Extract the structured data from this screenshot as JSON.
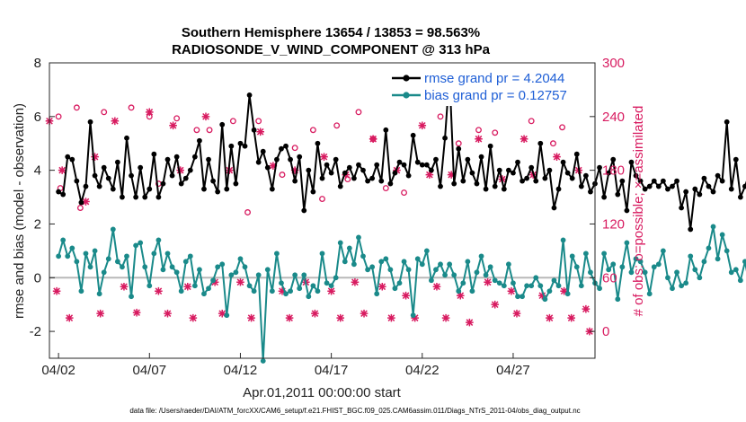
{
  "colors": {
    "rmse": "#000000",
    "bias": "#1a8a8a",
    "obs": "#d81b60",
    "zero_line": "#b8b8b8",
    "legend_text": "#1f5fd6"
  },
  "chart_data": {
    "type": "line",
    "title": "Southern Hemisphere 13654 / 13853 = 98.563%",
    "subtitle": "RADIOSONDE_V_WIND_COMPONENT @ 313 hPa",
    "xlabel": "Apr.01,2011 00:00:00 start",
    "ylabel": "rmse and bias (model - observation)",
    "y2label": "# of obs: o=possible; ×=assimilated",
    "x_tick_labels": [
      "04/02",
      "04/07",
      "04/12",
      "04/17",
      "04/22",
      "04/27"
    ],
    "x_tick_days": [
      1,
      6,
      11,
      16,
      21,
      26
    ],
    "xlim": [
      0.5,
      30.5
    ],
    "ylim": [
      -3,
      8
    ],
    "yticks": [
      -2,
      0,
      2,
      4,
      6,
      8
    ],
    "y2lim": [
      -30,
      300
    ],
    "y2ticks": [
      0,
      60,
      120,
      180,
      240,
      300
    ],
    "x_step_days": 0.25,
    "series": [
      {
        "name": "rmse grand pr = 4.2044",
        "axis": "left",
        "values": [
          3.2,
          3.1,
          4.5,
          4.4,
          3.6,
          2.8,
          3.4,
          5.8,
          3.8,
          3.4,
          4.1,
          3.7,
          3.3,
          4.3,
          3.0,
          5.2,
          3.8,
          3.0,
          4.1,
          3.0,
          3.3,
          4.6,
          3.0,
          3.5,
          4.4,
          3.8,
          4.5,
          3.5,
          3.7,
          4.0,
          4.5,
          5.1,
          3.3,
          4.4,
          3.6,
          3.2,
          5.7,
          3.3,
          4.9,
          3.5,
          5.0,
          4.9,
          6.8,
          5.5,
          4.3,
          4.7,
          4.1,
          3.3,
          4.4,
          4.8,
          4.9,
          4.4,
          3.6,
          4.5,
          2.5,
          4.0,
          3.2,
          5.0,
          3.7,
          4.2,
          3.9,
          4.4,
          3.4,
          3.9,
          4.1,
          3.7,
          4.2,
          4.0,
          3.6,
          3.7,
          4.2,
          3.6,
          5.5,
          3.5,
          3.9,
          4.3,
          4.2,
          3.8,
          5.3,
          4.3,
          4.2,
          4.2,
          4.0,
          4.4,
          3.4,
          5.2,
          7.6,
          3.5,
          4.8,
          3.6,
          4.4,
          3.9,
          3.5,
          4.5,
          3.3,
          4.9,
          3.4,
          4.0,
          3.3,
          4.0,
          3.9,
          4.3,
          3.6,
          3.7,
          4.1,
          3.6,
          5.0,
          3.7,
          4.0,
          2.6,
          3.3,
          4.3,
          3.9,
          3.7,
          4.6,
          3.4,
          3.8,
          3.2,
          3.5,
          4.1,
          3.0,
          3.9,
          4.4,
          3.1,
          3.6,
          2.5,
          4.3,
          3.8,
          3.6,
          3.3,
          3.4,
          3.6,
          3.4,
          3.6,
          3.3,
          3.4,
          3.6,
          2.6,
          3.2,
          1.8,
          3.3,
          3.1,
          3.7,
          3.4,
          3.2,
          3.8,
          3.6,
          5.8,
          3.3,
          4.4,
          3.0,
          3.4,
          3.9,
          3.2,
          3.3,
          3.6,
          3.5,
          3.8,
          3.9,
          4.1,
          4.9,
          2.4
        ]
      },
      {
        "name": "bias grand pr = 0.12757",
        "axis": "left",
        "values": [
          0.8,
          1.4,
          0.8,
          1.1,
          0.6,
          -0.5,
          0.9,
          0.4,
          1.0,
          -0.6,
          0.2,
          0.7,
          1.8,
          0.6,
          0.4,
          0.8,
          -0.7,
          1.2,
          1.3,
          0.4,
          -0.3,
          0.9,
          1.4,
          0.3,
          0.9,
          0.4,
          0.2,
          -0.5,
          0.6,
          0.8,
          -0.3,
          0.3,
          -0.6,
          -0.4,
          -0.1,
          0.4,
          0.5,
          -1.4,
          0.1,
          0.2,
          0.7,
          0.4,
          -0.3,
          -0.5,
          0.1,
          -3.1,
          0.3,
          -0.5,
          0.9,
          -0.2,
          -0.6,
          -0.5,
          0.1,
          -0.4,
          0.1,
          -0.7,
          -0.3,
          -0.5,
          0.9,
          -0.2,
          -0.3,
          0.0,
          1.3,
          0.6,
          1.1,
          0.5,
          1.5,
          0.8,
          0.3,
          0.4,
          -0.6,
          0.6,
          0.7,
          0.3,
          -0.4,
          -0.2,
          0.6,
          0.3,
          -1.4,
          0.7,
          0.5,
          1.0,
          -0.1,
          0.3,
          0.5,
          0.1,
          0.5,
          0.1,
          -0.5,
          -0.2,
          0.6,
          -0.5,
          0.2,
          0.8,
          0.1,
          0.4,
          -0.1,
          -0.2,
          -0.3,
          0.5,
          -0.2,
          -0.7,
          -0.7,
          -0.3,
          -0.3,
          0.0,
          -0.3,
          -0.8,
          -0.5,
          -0.1,
          -0.3,
          1.4,
          -0.6,
          0.8,
          0.4,
          -0.3,
          0.9,
          0.2,
          -0.2,
          -0.4,
          0.9,
          0.3,
          0.5,
          -0.8,
          0.4,
          1.3,
          0.2,
          0.7,
          0.6,
          0.2,
          -0.6,
          0.4,
          0.5,
          1.0,
          0.0,
          -0.4,
          0.2,
          -0.3,
          -0.2,
          0.8,
          0.3,
          0.0,
          0.6,
          1.1,
          1.9,
          0.7,
          1.6,
          1.0,
          0.2,
          0.3,
          -0.1,
          0.6,
          -0.3,
          0.3,
          -0.3,
          -0.8,
          -0.4,
          -0.9,
          -2.1,
          0.5,
          0.5
        ]
      }
    ],
    "obs_series": [
      {
        "name": "possible",
        "marker": "o",
        "axis": "right",
        "x_days": [
          1.0,
          1.1,
          2.0,
          2.2,
          3.5,
          5.0,
          6.0,
          6.5,
          7.5,
          8.6,
          9.3,
          10.6,
          11.4,
          12.0,
          13.3,
          14.0,
          15.0,
          15.5,
          16.3,
          16.9,
          17.5,
          18.3,
          19.0,
          20.0,
          22.0,
          23.0,
          24.1,
          25.0,
          27.0,
          28.2,
          28.7
        ],
        "y": [
          240,
          160,
          250,
          138,
          245,
          250,
          240,
          165,
          238,
          225,
          225,
          235,
          133,
          235,
          175,
          205,
          225,
          148,
          230,
          170,
          245,
          215,
          160,
          155,
          240,
          210,
          225,
          222,
          235,
          210,
          228
        ]
      },
      {
        "name": "assimilated",
        "marker": "x",
        "axis": "right",
        "x_days": [
          0.5,
          0.9,
          1.2,
          1.6,
          2.5,
          3.0,
          3.3,
          4.1,
          4.6,
          5.3,
          6.0,
          6.5,
          7.0,
          7.3,
          7.7,
          8.1,
          8.4,
          9.1,
          9.6,
          10.0,
          10.4,
          11.0,
          11.6,
          12.1,
          12.8,
          13.3,
          13.7,
          14.0,
          14.6,
          15.1,
          15.6,
          16.0,
          16.5,
          16.8,
          17.3,
          17.8,
          18.3,
          18.8,
          19.3,
          19.6,
          20.1,
          20.6,
          21.0,
          21.4,
          21.8,
          22.3,
          22.6,
          23.1,
          23.6,
          24.1,
          24.6,
          25.0,
          25.4,
          25.9,
          26.2,
          26.6,
          27.1,
          27.6,
          28.0,
          28.4,
          28.8,
          29.2,
          29.6,
          30.0,
          30.2
        ],
        "y": [
          235,
          45,
          180,
          15,
          145,
          195,
          20,
          235,
          50,
          21,
          245,
          45,
          20,
          230,
          180,
          50,
          15,
          240,
          55,
          20,
          180,
          55,
          15,
          223,
          185,
          45,
          15,
          180,
          55,
          20,
          195,
          45,
          15,
          175,
          55,
          20,
          215,
          50,
          15,
          180,
          40,
          15,
          230,
          175,
          50,
          15,
          175,
          40,
          10,
          215,
          55,
          30,
          170,
          45,
          20,
          215,
          175,
          40,
          15,
          195,
          45,
          15,
          180,
          25,
          0
        ]
      }
    ],
    "legend": [
      {
        "label": "rmse grand pr = 4.2044",
        "series": "rmse"
      },
      {
        "label": "bias grand pr = 0.12757",
        "series": "bias"
      }
    ],
    "footnote": "data file: /Users/raeder/DAI/ATM_forcXX/CAM6_setup/f.e21.FHIST_BGC.f09_025.CAM6assim.011/Diags_NTrS_2011-04/obs_diag_output.nc"
  }
}
